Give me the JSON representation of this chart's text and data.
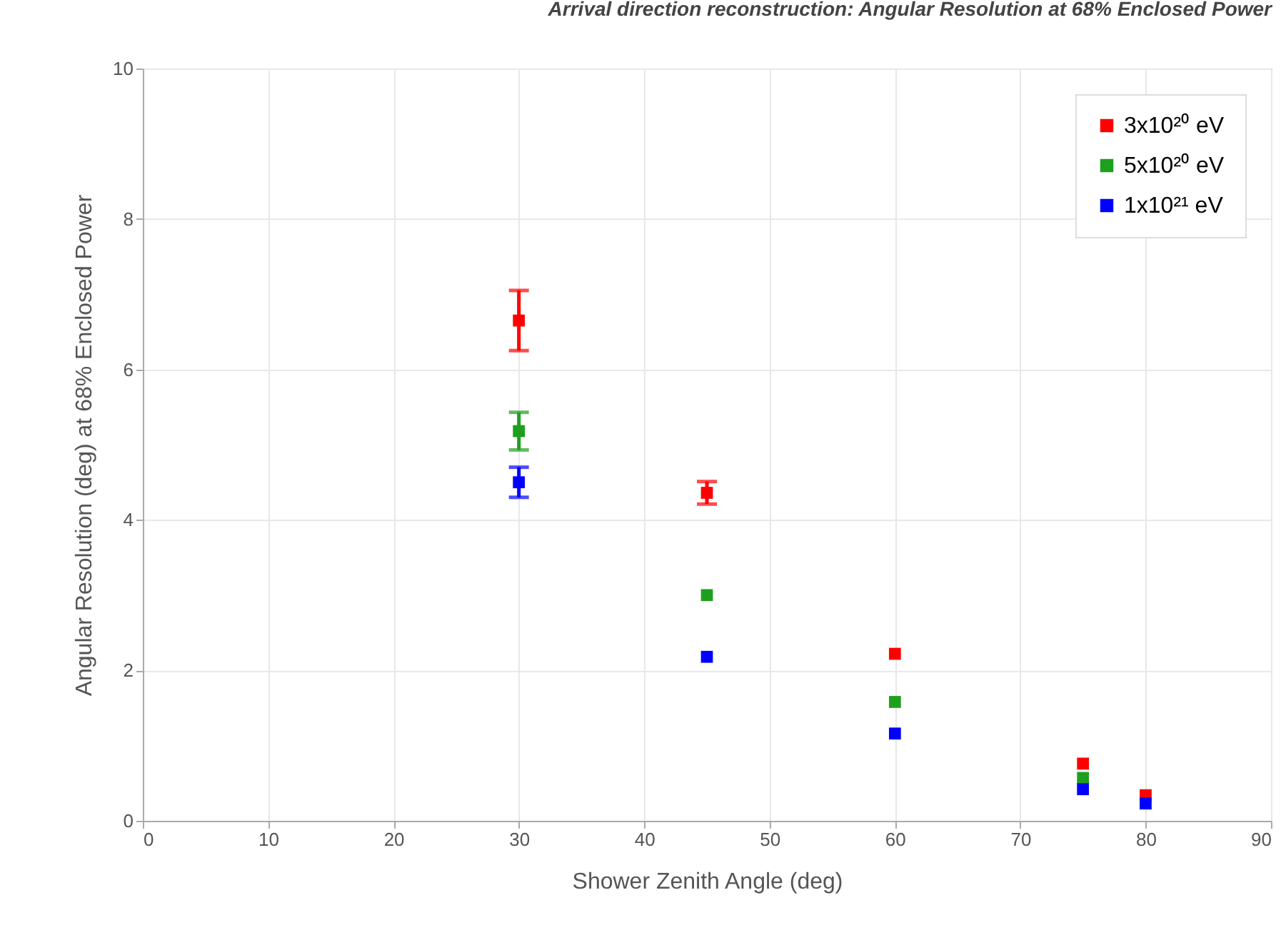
{
  "chart_data": {
    "type": "scatter",
    "title": "Arrival direction reconstruction: Angular Resolution at 68% Enclosed Power",
    "xlabel": "Shower Zenith Angle (deg)",
    "ylabel": "Angular Resolution (deg) at 68% Enclosed Power",
    "x": [
      30,
      45,
      60,
      75,
      80
    ],
    "series": [
      {
        "name": "3x10²⁰ eV",
        "color": "#ff0000",
        "values": [
          6.65,
          4.36,
          2.22,
          0.76,
          0.34
        ],
        "errors": [
          0.4,
          0.15,
          null,
          null,
          null
        ]
      },
      {
        "name": "5x10²⁰ eV",
        "color": "#1ea01e",
        "values": [
          5.18,
          3.0,
          1.58,
          0.57,
          null
        ],
        "errors": [
          0.25,
          null,
          null,
          null,
          null
        ]
      },
      {
        "name": "1x10²¹ eV",
        "color": "#0000ff",
        "values": [
          4.5,
          2.18,
          1.16,
          0.42,
          0.23
        ],
        "errors": [
          0.2,
          null,
          null,
          null,
          null
        ]
      }
    ],
    "xlim": [
      0,
      90
    ],
    "xticks": [
      0,
      10,
      20,
      30,
      40,
      50,
      60,
      70,
      80,
      90
    ],
    "ylim": [
      0,
      10
    ],
    "yticks": [
      0,
      2,
      4,
      6,
      8,
      10
    ],
    "grid": true,
    "legend": "top right",
    "marker": "square"
  }
}
